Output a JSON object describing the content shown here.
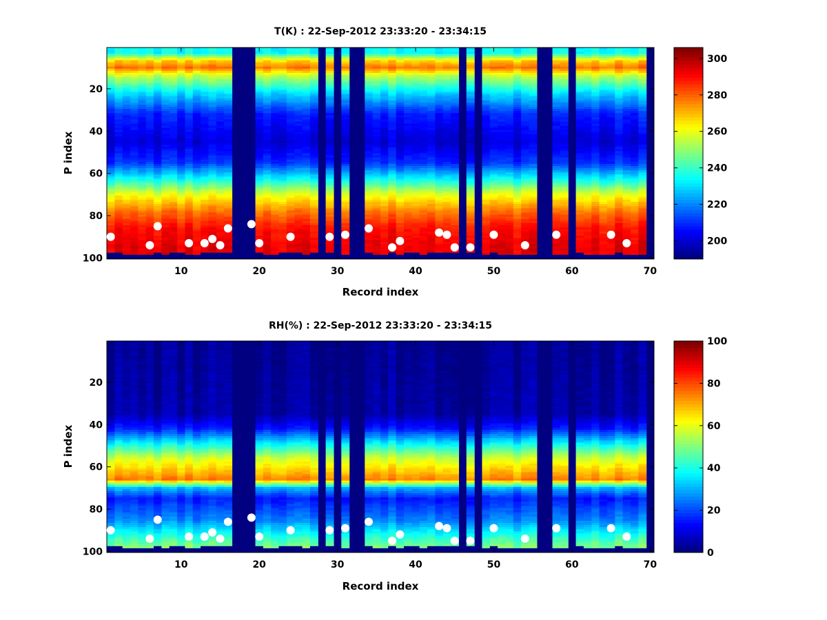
{
  "chart_data": [
    {
      "type": "heatmap",
      "title": "T(K) : 22-Sep-2012 23:33:20 - 23:34:15",
      "xlabel": "Record index",
      "ylabel": "P index",
      "xlim": [
        0.5,
        70.5
      ],
      "ylim": [
        100,
        1
      ],
      "xticks": [
        10,
        20,
        30,
        40,
        50,
        60,
        70
      ],
      "yticks": [
        20,
        40,
        60,
        80,
        100
      ],
      "colormap": "jet",
      "clim": [
        190,
        306
      ],
      "colorbar_ticks": [
        200,
        220,
        240,
        260,
        280,
        300
      ],
      "missing_records": [
        17,
        18,
        19,
        28,
        30,
        32,
        33,
        46,
        48,
        56,
        57,
        60,
        70
      ],
      "profile_by_p_index": [
        {
          "p": 3,
          "value": 234
        },
        {
          "p": 7,
          "value": 268
        },
        {
          "p": 10,
          "value": 278
        },
        {
          "p": 14,
          "value": 255
        },
        {
          "p": 22,
          "value": 230
        },
        {
          "p": 32,
          "value": 208
        },
        {
          "p": 45,
          "value": 200
        },
        {
          "p": 55,
          "value": 210
        },
        {
          "p": 63,
          "value": 235
        },
        {
          "p": 70,
          "value": 260
        },
        {
          "p": 78,
          "value": 278
        },
        {
          "p": 86,
          "value": 290
        },
        {
          "p": 95,
          "value": 294
        },
        {
          "p": 98,
          "value": 294
        }
      ],
      "surface_points": {
        "x": [
          1,
          6,
          7,
          11,
          13,
          14,
          15,
          16,
          19,
          20,
          24,
          29,
          31,
          34,
          37,
          38,
          43,
          44,
          45,
          47,
          50,
          54,
          58,
          65,
          67
        ],
        "y": [
          90,
          94,
          85,
          93,
          93,
          91,
          94,
          86,
          84,
          93,
          90,
          90,
          89,
          86,
          95,
          92,
          88,
          89,
          95,
          95,
          89,
          94,
          89,
          89,
          93
        ]
      }
    },
    {
      "type": "heatmap",
      "title": "RH(%) : 22-Sep-2012 23:33:20 - 23:34:15",
      "xlabel": "Record index",
      "ylabel": "P index",
      "xlim": [
        0.5,
        70.5
      ],
      "ylim": [
        100,
        1
      ],
      "xticks": [
        10,
        20,
        30,
        40,
        50,
        60,
        70
      ],
      "yticks": [
        20,
        40,
        60,
        80,
        100
      ],
      "colormap": "jet",
      "clim": [
        0,
        100
      ],
      "colorbar_ticks": [
        0,
        20,
        40,
        60,
        80,
        100
      ],
      "missing_records": [
        17,
        18,
        19,
        28,
        30,
        32,
        33,
        46,
        48,
        56,
        57,
        60,
        70
      ],
      "profile_by_p_index": [
        {
          "p": 1,
          "value": 2
        },
        {
          "p": 35,
          "value": 4
        },
        {
          "p": 42,
          "value": 15
        },
        {
          "p": 50,
          "value": 40
        },
        {
          "p": 56,
          "value": 58
        },
        {
          "p": 62,
          "value": 68
        },
        {
          "p": 66,
          "value": 75
        },
        {
          "p": 70,
          "value": 30
        },
        {
          "p": 75,
          "value": 15
        },
        {
          "p": 85,
          "value": 25
        },
        {
          "p": 95,
          "value": 45
        },
        {
          "p": 98,
          "value": 50
        }
      ],
      "surface_points": {
        "x": [
          1,
          6,
          7,
          11,
          13,
          14,
          15,
          16,
          19,
          20,
          24,
          29,
          31,
          34,
          37,
          38,
          43,
          44,
          45,
          47,
          50,
          54,
          58,
          65,
          67
        ],
        "y": [
          90,
          94,
          85,
          93,
          93,
          91,
          94,
          86,
          84,
          93,
          90,
          90,
          89,
          86,
          95,
          92,
          88,
          89,
          95,
          95,
          89,
          94,
          89,
          89,
          93
        ]
      }
    }
  ]
}
